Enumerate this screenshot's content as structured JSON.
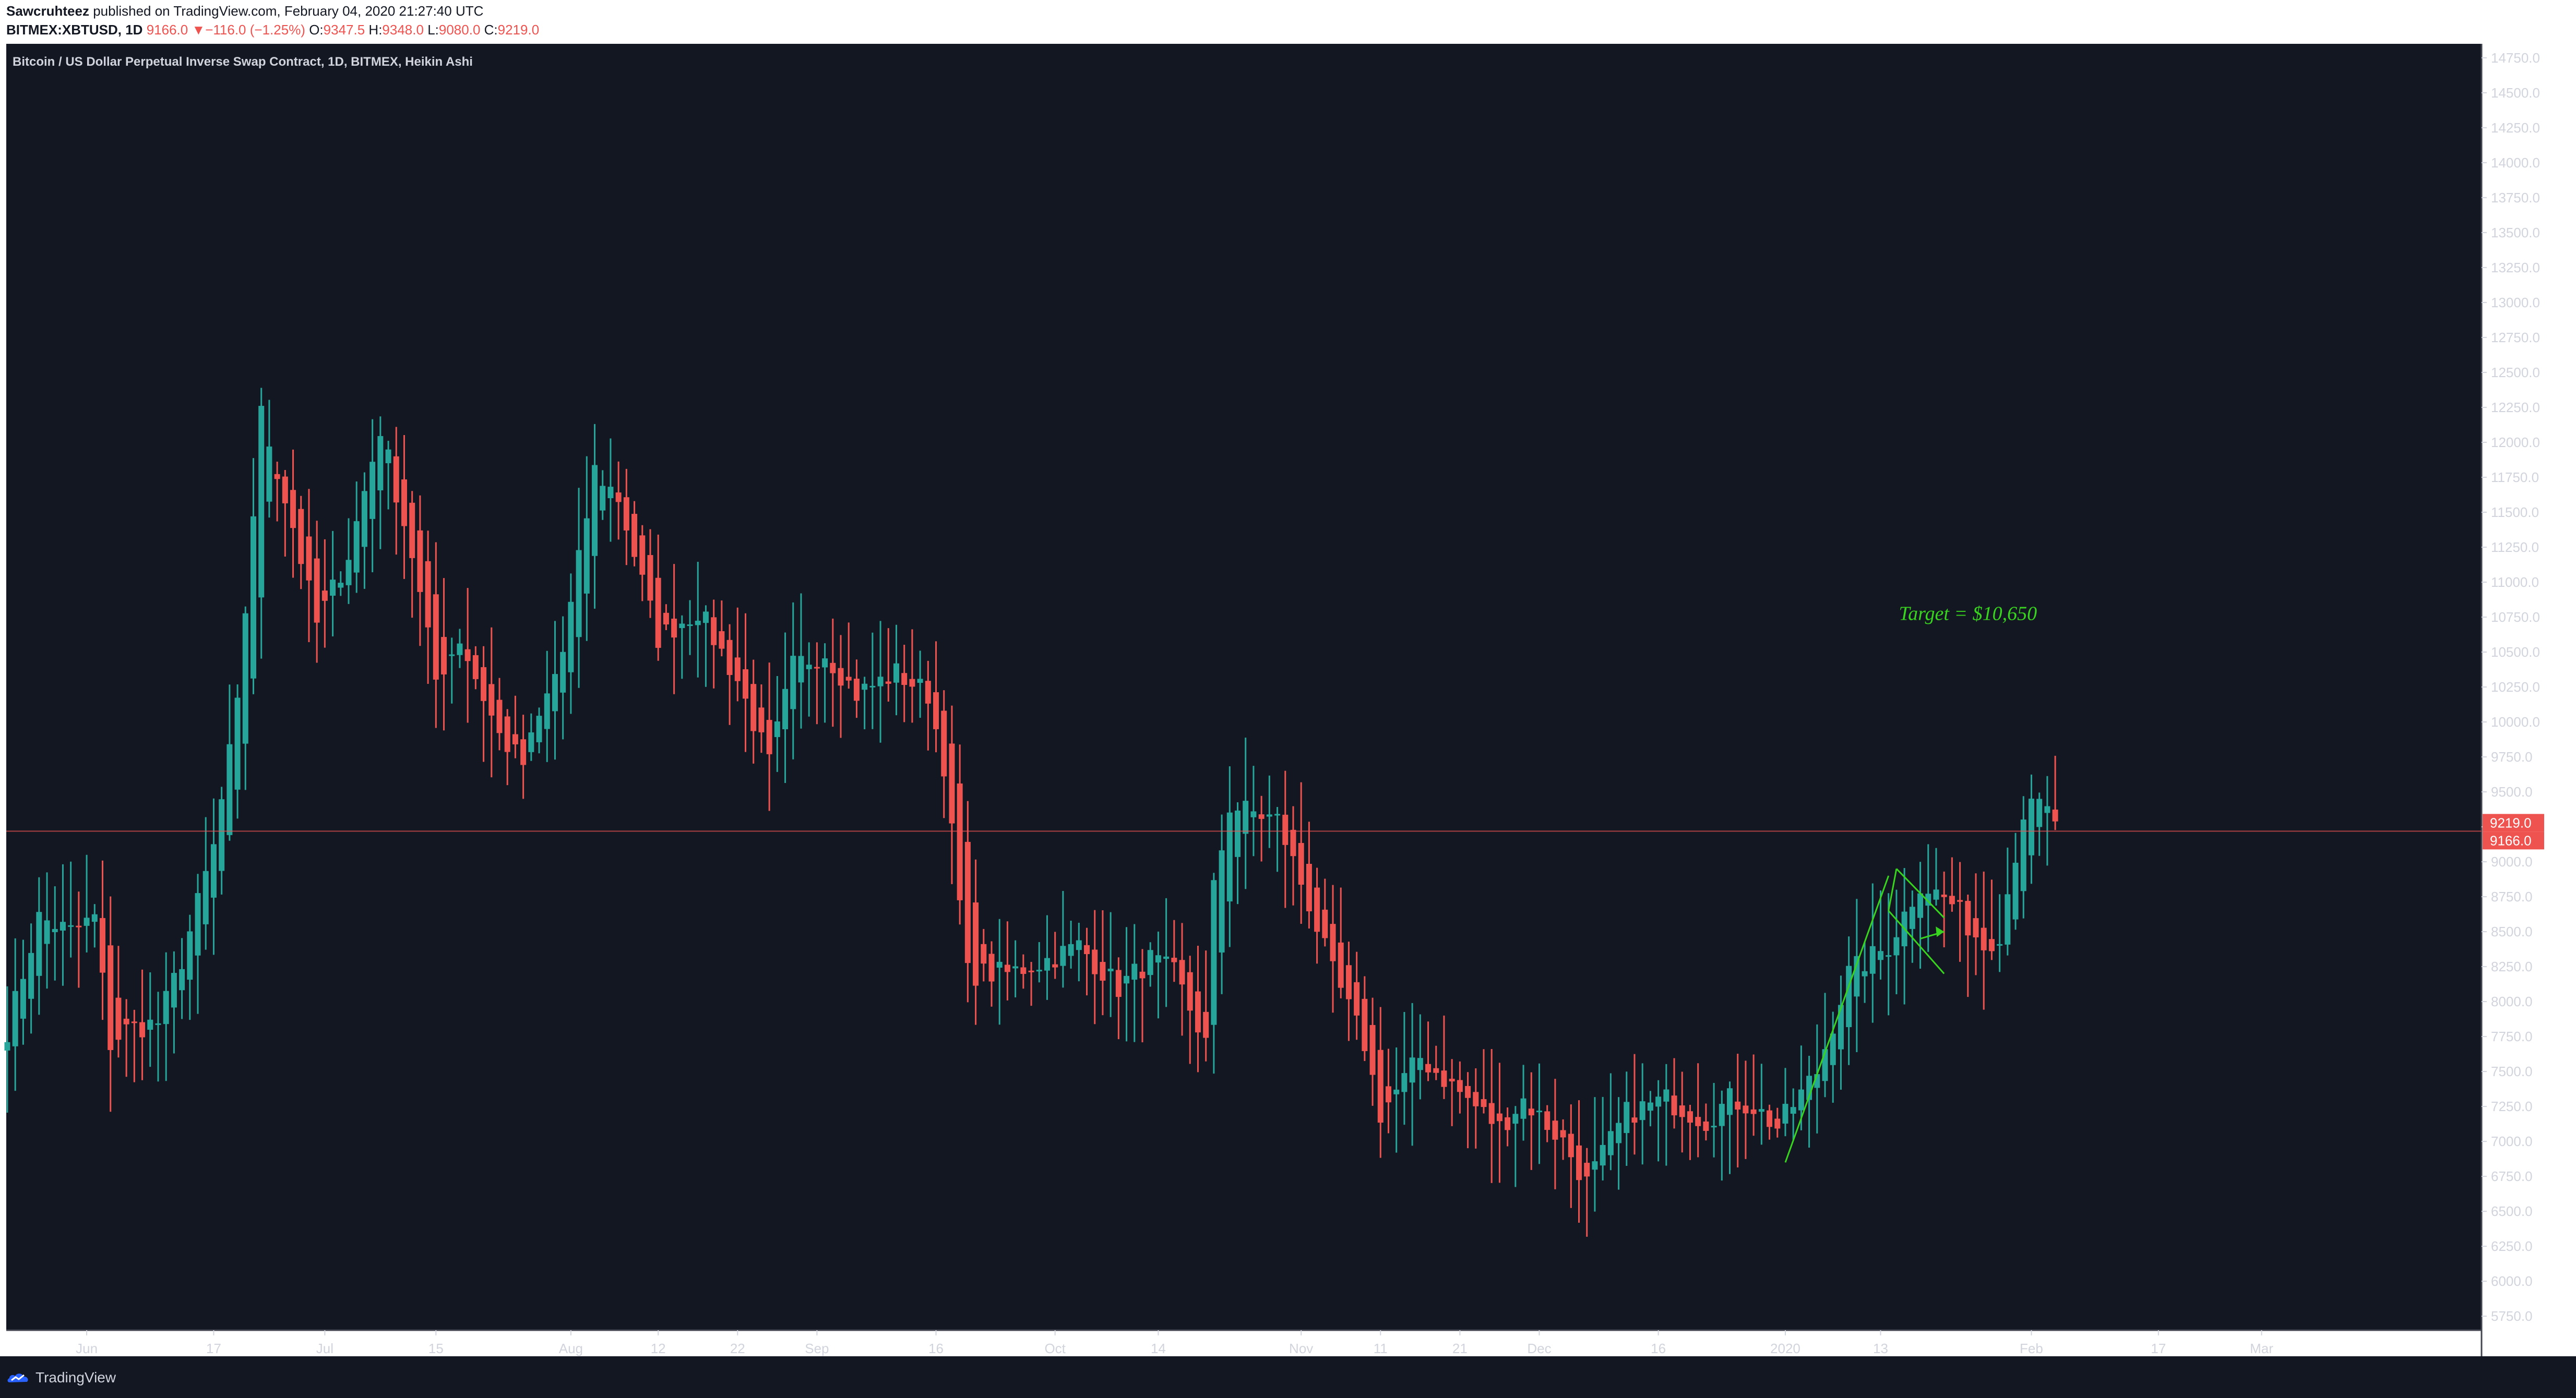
{
  "header": {
    "author": "Sawcruhteez",
    "published": "published on TradingView.com, February 04, 2020 21:27:40 UTC",
    "symbol_tf": "BITMEX:XBTUSD, 1D",
    "last_price": "9166.0",
    "change_arrow": "▼",
    "change": "−116.0 (−1.25%)",
    "o_label": "O:",
    "o": "9347.5",
    "h_label": "H:",
    "h": "9348.0",
    "l_label": "L:",
    "l": "9080.0",
    "c_label": "C:",
    "c": "9219.0"
  },
  "chart_title": "Bitcoin / US Dollar Perpetual Inverse Swap Contract, 1D, BITMEX, Heikin Ashi",
  "footer": {
    "brand": "TradingView"
  },
  "colors": {
    "background": "#131722",
    "up": "#26a69a",
    "down": "#ef5350",
    "annotation": "#39d41f",
    "text": "#d1d4dc",
    "grid": "#2a2e39"
  },
  "chart_data": {
    "type": "candlestick",
    "style": "Heikin Ashi",
    "ylim": [
      5650,
      14850
    ],
    "yticks": [
      5750,
      6000,
      6250,
      6500,
      6750,
      7000,
      7250,
      7500,
      7750,
      8000,
      8250,
      8500,
      8750,
      9000,
      9250,
      9500,
      9750,
      10000,
      10250,
      10500,
      10750,
      11000,
      11250,
      11500,
      11750,
      12000,
      12250,
      12500,
      12750,
      13000,
      13250,
      13500,
      13750,
      14000,
      14250,
      14500,
      14750
    ],
    "ytick_labels": [
      "5750.0",
      "6000.0",
      "6250.0",
      "6500.0",
      "6750.0",
      "7000.0",
      "7250.0",
      "7500.0",
      "7750.0",
      "8000.0",
      "8250.0",
      "8500.0",
      "8750.0",
      "9000.0",
      "9250.0",
      "9500.0",
      "9750.0",
      "10000.0",
      "10250.0",
      "10500.0",
      "10750.0",
      "11000.0",
      "11250.0",
      "11500.0",
      "11750.0",
      "12000.0",
      "12250.0",
      "12500.0",
      "12750.0",
      "13000.0",
      "13250.0",
      "13500.0",
      "13750.0",
      "14000.0",
      "14250.0",
      "14500.0",
      "14750.0"
    ],
    "x_range_days": [
      0,
      279
    ],
    "x_start_date": "2019-05-22",
    "xticks": [
      {
        "day": 10,
        "label": "Jun"
      },
      {
        "day": 26,
        "label": "17"
      },
      {
        "day": 40,
        "label": "Jul"
      },
      {
        "day": 54,
        "label": "15"
      },
      {
        "day": 71,
        "label": "Aug"
      },
      {
        "day": 82,
        "label": "12"
      },
      {
        "day": 92,
        "label": "22"
      },
      {
        "day": 102,
        "label": "Sep"
      },
      {
        "day": 117,
        "label": "16"
      },
      {
        "day": 132,
        "label": "Oct"
      },
      {
        "day": 145,
        "label": "14"
      },
      {
        "day": 163,
        "label": "Nov"
      },
      {
        "day": 173,
        "label": "11"
      },
      {
        "day": 183,
        "label": "21"
      },
      {
        "day": 193,
        "label": "Dec"
      },
      {
        "day": 208,
        "label": "16"
      },
      {
        "day": 224,
        "label": "2020"
      },
      {
        "day": 236,
        "label": "13"
      },
      {
        "day": 255,
        "label": "Feb"
      },
      {
        "day": 271,
        "label": "17"
      },
      {
        "day": 284,
        "label": "Mar"
      }
    ],
    "price_line": 9219.0,
    "price_labels": {
      "close": "9219.0",
      "last": "9166.0"
    },
    "keypoints": [
      {
        "day": 0,
        "p": 7800
      },
      {
        "day": 4,
        "p": 8600
      },
      {
        "day": 8,
        "p": 8500
      },
      {
        "day": 11,
        "p": 8600
      },
      {
        "day": 13,
        "p": 7700
      },
      {
        "day": 15,
        "p": 7800
      },
      {
        "day": 19,
        "p": 7850
      },
      {
        "day": 22,
        "p": 8300
      },
      {
        "day": 26,
        "p": 9100
      },
      {
        "day": 29,
        "p": 10100
      },
      {
        "day": 32,
        "p": 12200
      },
      {
        "day": 36,
        "p": 11400
      },
      {
        "day": 39,
        "p": 10700
      },
      {
        "day": 43,
        "p": 11200
      },
      {
        "day": 47,
        "p": 12100
      },
      {
        "day": 51,
        "p": 11200
      },
      {
        "day": 54,
        "p": 10300
      },
      {
        "day": 57,
        "p": 10600
      },
      {
        "day": 62,
        "p": 9900
      },
      {
        "day": 65,
        "p": 9700
      },
      {
        "day": 70,
        "p": 10500
      },
      {
        "day": 74,
        "p": 11800
      },
      {
        "day": 77,
        "p": 11600
      },
      {
        "day": 82,
        "p": 10600
      },
      {
        "day": 87,
        "p": 10800
      },
      {
        "day": 92,
        "p": 10300
      },
      {
        "day": 96,
        "p": 9700
      },
      {
        "day": 99,
        "p": 10400
      },
      {
        "day": 103,
        "p": 10500
      },
      {
        "day": 107,
        "p": 10200
      },
      {
        "day": 112,
        "p": 10350
      },
      {
        "day": 116,
        "p": 10200
      },
      {
        "day": 118,
        "p": 9700
      },
      {
        "day": 121,
        "p": 8200
      },
      {
        "day": 126,
        "p": 8200
      },
      {
        "day": 131,
        "p": 8300
      },
      {
        "day": 135,
        "p": 8400
      },
      {
        "day": 140,
        "p": 8100
      },
      {
        "day": 144,
        "p": 8300
      },
      {
        "day": 147,
        "p": 8200
      },
      {
        "day": 151,
        "p": 7700
      },
      {
        "day": 152,
        "p": 8800
      },
      {
        "day": 154,
        "p": 9400
      },
      {
        "day": 160,
        "p": 9300
      },
      {
        "day": 164,
        "p": 8700
      },
      {
        "day": 167,
        "p": 8200
      },
      {
        "day": 171,
        "p": 7700
      },
      {
        "day": 173,
        "p": 7200
      },
      {
        "day": 178,
        "p": 7600
      },
      {
        "day": 184,
        "p": 7300
      },
      {
        "day": 188,
        "p": 7100
      },
      {
        "day": 191,
        "p": 7300
      },
      {
        "day": 196,
        "p": 7000
      },
      {
        "day": 199,
        "p": 6700
      },
      {
        "day": 204,
        "p": 7200
      },
      {
        "day": 209,
        "p": 7300
      },
      {
        "day": 214,
        "p": 7150
      },
      {
        "day": 217,
        "p": 7300
      },
      {
        "day": 220,
        "p": 7250
      },
      {
        "day": 223,
        "p": 7100
      },
      {
        "day": 228,
        "p": 7500
      },
      {
        "day": 232,
        "p": 8200
      },
      {
        "day": 237,
        "p": 8400
      },
      {
        "day": 241,
        "p": 8850
      },
      {
        "day": 245,
        "p": 8700
      },
      {
        "day": 249,
        "p": 8400
      },
      {
        "day": 251,
        "p": 8500
      },
      {
        "day": 254,
        "p": 9350
      },
      {
        "day": 256,
        "p": 9400
      },
      {
        "day": 258,
        "p": 9300
      }
    ],
    "annotations": {
      "target_text": "Target = $10,650",
      "target_day": 247,
      "target_price": 10730,
      "trendline": [
        {
          "day": 224,
          "p": 6850
        },
        {
          "day": 237,
          "p": 8900
        }
      ],
      "channel_top": [
        {
          "day": 238,
          "p": 8950
        },
        {
          "day": 244,
          "p": 8600
        }
      ],
      "channel_bottom": [
        {
          "day": 237,
          "p": 8650
        },
        {
          "day": 244,
          "p": 8200
        }
      ],
      "arrow": [
        {
          "day": 241,
          "p": 8450
        },
        {
          "day": 244,
          "p": 8500
        }
      ]
    }
  }
}
